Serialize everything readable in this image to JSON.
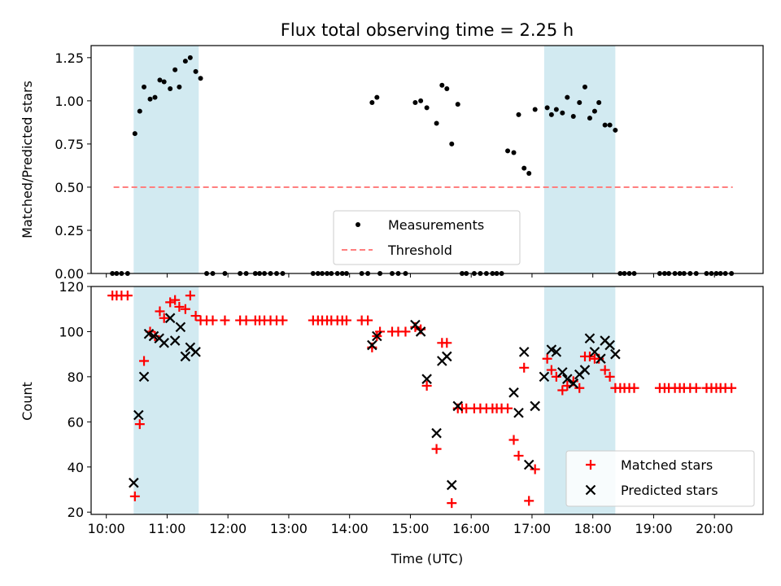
{
  "chart_data": [
    {
      "type": "scatter",
      "title": "Flux total observing time = 2.25 h",
      "xlabel": "",
      "ylabel": "Matched/Predicted stars",
      "xlim": [
        9.75,
        20.8
      ],
      "ylim": [
        0,
        1.32
      ],
      "yticks": [
        0,
        0.25,
        0.5,
        0.75,
        1.0,
        1.25
      ],
      "yticklabels": [
        "0.00",
        "0.25",
        "0.50",
        "0.75",
        "1.00",
        "1.25"
      ],
      "shaded_spans": [
        [
          10.45,
          11.52
        ],
        [
          17.2,
          18.37
        ]
      ],
      "shade_color": "#add8e6",
      "legend_position": "lower center",
      "series": [
        {
          "name": "Measurements",
          "kind": "scatter",
          "marker": "dot",
          "color": "#000000",
          "x": [
            10.1,
            10.17,
            10.25,
            10.35,
            10.47,
            10.55,
            10.62,
            10.72,
            10.8,
            10.88,
            10.95,
            11.05,
            11.13,
            11.2,
            11.3,
            11.38,
            11.47,
            11.55,
            11.65,
            11.75,
            11.95,
            12.2,
            12.3,
            12.45,
            12.52,
            12.6,
            12.7,
            12.8,
            12.9,
            13.4,
            13.48,
            13.55,
            13.63,
            13.7,
            13.8,
            13.88,
            13.95,
            14.2,
            14.3,
            14.37,
            14.45,
            14.5,
            14.7,
            14.8,
            14.92,
            15.08,
            15.17,
            15.27,
            15.43,
            15.52,
            15.6,
            15.68,
            15.78,
            15.85,
            15.92,
            16.05,
            16.15,
            16.25,
            16.35,
            16.42,
            16.5,
            16.6,
            16.7,
            16.78,
            16.87,
            16.95,
            17.05,
            17.25,
            17.32,
            17.4,
            17.5,
            17.58,
            17.68,
            17.78,
            17.87,
            17.95,
            18.03,
            18.1,
            18.2,
            18.28,
            18.37,
            18.45,
            18.52,
            18.6,
            18.68,
            19.1,
            19.18,
            19.25,
            19.35,
            19.43,
            19.5,
            19.6,
            19.7,
            19.87,
            19.95,
            20.03,
            20.1,
            20.18,
            20.28
          ],
          "y": [
            0,
            0,
            0,
            0,
            0.81,
            0.94,
            1.08,
            1.01,
            1.02,
            1.12,
            1.11,
            1.07,
            1.18,
            1.08,
            1.23,
            1.25,
            1.17,
            1.13,
            0,
            0,
            0,
            0,
            0,
            0,
            0,
            0,
            0,
            0,
            0,
            0,
            0,
            0,
            0,
            0,
            0,
            0,
            0,
            0,
            0,
            0.99,
            1.02,
            0,
            0,
            0,
            0,
            0.99,
            1.0,
            0.96,
            0.87,
            1.09,
            1.07,
            0.75,
            0.98,
            0,
            0,
            0,
            0,
            0,
            0,
            0,
            0,
            0.71,
            0.7,
            0.92,
            0.61,
            0.58,
            0.95,
            0.96,
            0.92,
            0.95,
            0.93,
            1.02,
            0.91,
            0.99,
            1.08,
            0.9,
            0.94,
            0.99,
            0.86,
            0.86,
            0.83,
            0,
            0,
            0,
            0,
            0,
            0,
            0,
            0,
            0,
            0,
            0,
            0,
            0,
            0,
            0,
            0,
            0,
            0
          ]
        },
        {
          "name": "Threshold",
          "kind": "dashed-line",
          "color": "#ff7f7f",
          "x": [
            10.12,
            20.3
          ],
          "y": [
            0.5,
            0.5
          ]
        }
      ]
    },
    {
      "type": "scatter",
      "title": "",
      "xlabel": "Time (UTC)",
      "ylabel": "Count",
      "xlim": [
        9.75,
        20.8
      ],
      "ylim": [
        19,
        120
      ],
      "xticks": [
        10,
        11,
        12,
        13,
        14,
        15,
        16,
        17,
        18,
        19,
        20
      ],
      "xticklabels": [
        "10:00",
        "11:00",
        "12:00",
        "13:00",
        "14:00",
        "15:00",
        "16:00",
        "17:00",
        "18:00",
        "19:00",
        "20:00"
      ],
      "yticks": [
        20,
        40,
        60,
        80,
        100,
        120
      ],
      "yticklabels": [
        "20",
        "40",
        "60",
        "80",
        "100",
        "120"
      ],
      "shaded_spans": [
        [
          10.45,
          11.52
        ],
        [
          17.2,
          18.37
        ]
      ],
      "shade_color": "#add8e6",
      "legend_position": "lower right",
      "series": [
        {
          "name": "Matched stars",
          "kind": "scatter",
          "marker": "plus",
          "color": "#ff0000",
          "x": [
            10.1,
            10.17,
            10.25,
            10.35,
            10.47,
            10.55,
            10.62,
            10.72,
            10.8,
            10.88,
            10.95,
            11.05,
            11.13,
            11.2,
            11.3,
            11.38,
            11.47,
            11.55,
            11.65,
            11.75,
            11.95,
            12.2,
            12.3,
            12.45,
            12.52,
            12.6,
            12.7,
            12.8,
            12.9,
            13.4,
            13.48,
            13.55,
            13.63,
            13.7,
            13.8,
            13.88,
            13.95,
            14.2,
            14.3,
            14.37,
            14.45,
            14.5,
            14.7,
            14.8,
            14.92,
            15.08,
            15.17,
            15.27,
            15.43,
            15.52,
            15.6,
            15.68,
            15.78,
            15.85,
            15.92,
            16.05,
            16.15,
            16.25,
            16.35,
            16.42,
            16.5,
            16.6,
            16.7,
            16.78,
            16.87,
            16.95,
            17.05,
            17.25,
            17.32,
            17.4,
            17.5,
            17.58,
            17.68,
            17.78,
            17.87,
            17.95,
            18.03,
            18.1,
            18.2,
            18.28,
            18.37,
            18.45,
            18.52,
            18.6,
            18.68,
            19.1,
            19.18,
            19.25,
            19.35,
            19.43,
            19.5,
            19.6,
            19.7,
            19.87,
            19.95,
            20.03,
            20.1,
            20.18,
            20.28
          ],
          "y": [
            116,
            116,
            116,
            116,
            27,
            59,
            87,
            100,
            98,
            109,
            106,
            113,
            114,
            111,
            110,
            116,
            107,
            105,
            105,
            105,
            105,
            105,
            105,
            105,
            105,
            105,
            105,
            105,
            105,
            105,
            105,
            105,
            105,
            105,
            105,
            105,
            105,
            105,
            105,
            93,
            98,
            100,
            100,
            100,
            100,
            102,
            101,
            76,
            48,
            95,
            95,
            24,
            66,
            66,
            66,
            66,
            66,
            66,
            66,
            66,
            66,
            66,
            52,
            45,
            84,
            25,
            39,
            88,
            83,
            80,
            74,
            76,
            78,
            75,
            89,
            89,
            88,
            88,
            83,
            80,
            75,
            75,
            75,
            75,
            75,
            75,
            75,
            75,
            75,
            75,
            75,
            75,
            75,
            75,
            75,
            75,
            75,
            75,
            75
          ]
        },
        {
          "name": "Predicted stars",
          "kind": "scatter",
          "marker": "x",
          "color": "#000000",
          "x": [
            10.45,
            10.53,
            10.62,
            10.7,
            10.78,
            10.87,
            10.95,
            11.05,
            11.13,
            11.22,
            11.3,
            11.38,
            11.47,
            14.37,
            14.45,
            15.08,
            15.17,
            15.27,
            15.43,
            15.52,
            15.6,
            15.68,
            15.78,
            16.7,
            16.78,
            16.87,
            16.95,
            17.05,
            17.2,
            17.32,
            17.4,
            17.5,
            17.58,
            17.68,
            17.78,
            17.87,
            17.95,
            18.03,
            18.13,
            18.2,
            18.28,
            18.37
          ],
          "y": [
            33,
            63,
            80,
            99,
            98,
            97,
            95,
            106,
            96,
            102,
            89,
            93,
            91,
            94,
            98,
            103,
            100,
            79,
            55,
            87,
            89,
            32,
            67,
            73,
            64,
            91,
            41,
            67,
            80,
            92,
            91,
            82,
            79,
            77,
            81,
            83,
            97,
            91,
            88,
            96,
            94,
            90
          ]
        }
      ]
    }
  ]
}
